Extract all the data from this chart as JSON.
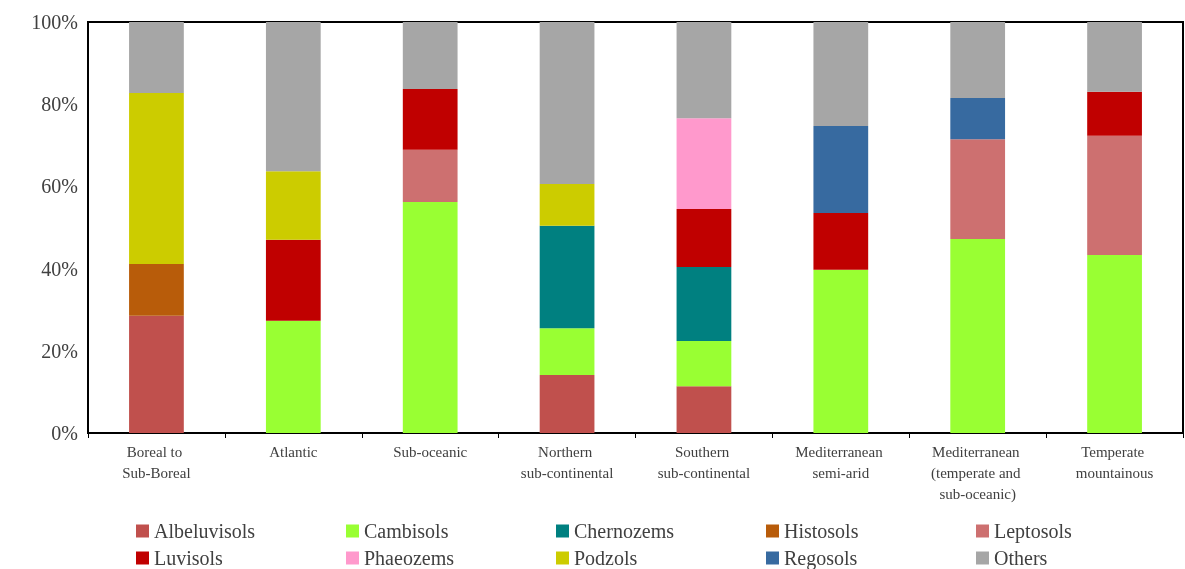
{
  "chart_data": {
    "type": "bar",
    "stacked": true,
    "categories": [
      "Boreal to Sub-Boreal",
      "Atlantic",
      "Sub-oceanic",
      "Northern sub-continental",
      "Southern sub-continental",
      "Mediterranean semi-arid",
      "Mediterranean (temperate and sub-oceanic)",
      "Temperate mountainous"
    ],
    "series": [
      {
        "name": "Albeluvisols",
        "color": "#c0504d",
        "values": [
          28.5,
          null,
          null,
          14.1,
          11.4,
          null,
          null,
          null
        ]
      },
      {
        "name": "Cambisols",
        "color": "#99ff33",
        "values": [
          null,
          27.3,
          56.2,
          11.4,
          11.0,
          39.7,
          47.2,
          43.3
        ]
      },
      {
        "name": "Chernozems",
        "color": "#008080",
        "values": [
          null,
          null,
          null,
          24.9,
          18.0,
          null,
          null,
          null
        ]
      },
      {
        "name": "Histosols",
        "color": "#b85c0a",
        "values": [
          12.6,
          null,
          null,
          null,
          null,
          null,
          null,
          null
        ]
      },
      {
        "name": "Leptosols",
        "color": "#cd7070",
        "values": [
          null,
          null,
          12.7,
          null,
          null,
          null,
          24.3,
          29.0
        ]
      },
      {
        "name": "Luvisols",
        "color": "#c00000",
        "values": [
          null,
          19.7,
          14.8,
          null,
          14.1,
          13.8,
          null,
          10.7
        ]
      },
      {
        "name": "Phaeozems",
        "color": "#ff99cc",
        "values": [
          null,
          null,
          null,
          null,
          22.1,
          null,
          null,
          null
        ]
      },
      {
        "name": "Podzols",
        "color": "#cccc00",
        "values": [
          41.6,
          16.7,
          null,
          10.2,
          null,
          null,
          null,
          null
        ]
      },
      {
        "name": "Regosols",
        "color": "#376aa0",
        "values": [
          null,
          null,
          null,
          null,
          null,
          21.2,
          10.0,
          null
        ]
      },
      {
        "name": "Others",
        "color": "#a6a6a6",
        "values": [
          17.3,
          36.3,
          16.3,
          39.4,
          23.4,
          25.3,
          18.5,
          17.0
        ]
      }
    ],
    "ylim": [
      0,
      100
    ],
    "yticks": [
      {
        "value": 0,
        "label": "0%"
      },
      {
        "value": 20,
        "label": "20%"
      },
      {
        "value": 40,
        "label": "40%"
      },
      {
        "value": 60,
        "label": "60%"
      },
      {
        "value": 80,
        "label": "80%"
      },
      {
        "value": 100,
        "label": "100%"
      }
    ],
    "grid": false,
    "legend": "bottom"
  }
}
